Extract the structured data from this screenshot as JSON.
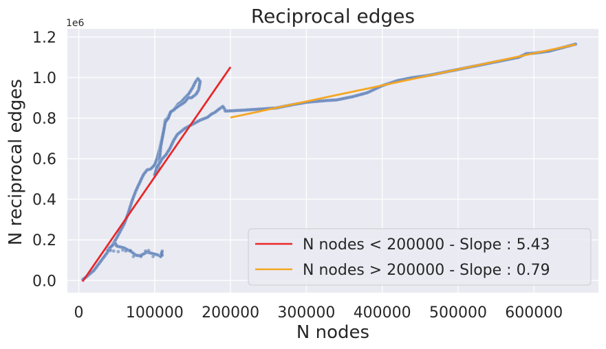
{
  "chart_data": {
    "type": "scatter",
    "title": "Reciprocal edges",
    "xlabel": "N nodes",
    "ylabel": "N reciprocal edges",
    "y_offset_label": "1e6",
    "xlim": [
      -15000,
      685000
    ],
    "ylim": [
      -60000,
      1240000
    ],
    "x_ticks": [
      0,
      100000,
      200000,
      300000,
      400000,
      500000,
      600000
    ],
    "x_tick_labels": [
      "0",
      "100000",
      "200000",
      "300000",
      "400000",
      "500000",
      "600000"
    ],
    "y_ticks": [
      0,
      200000,
      400000,
      600000,
      800000,
      1000000,
      1200000
    ],
    "y_tick_labels": [
      "0.0",
      "0.2",
      "0.4",
      "0.6",
      "0.8",
      "1.0",
      "1.2"
    ],
    "grid": true,
    "legend_position": "bottom-right",
    "colors": {
      "background": "#eaeaf2",
      "grid": "#ffffff",
      "points": "#4c72b0",
      "fit_low": "#e8272a",
      "fit_high": "#f5a623"
    },
    "scatter_paths": [
      [
        [
          5000,
          5000
        ],
        [
          10000,
          18000
        ],
        [
          20000,
          50000
        ],
        [
          30000,
          100000
        ],
        [
          40000,
          150000
        ],
        [
          50000,
          210000
        ],
        [
          60000,
          280000
        ],
        [
          65000,
          330000
        ],
        [
          70000,
          390000
        ],
        [
          75000,
          440000
        ],
        [
          80000,
          480000
        ],
        [
          85000,
          520000
        ],
        [
          90000,
          545000
        ],
        [
          95000,
          550000
        ],
        [
          100000,
          570000
        ],
        [
          103000,
          600000
        ],
        [
          106000,
          640000
        ],
        [
          109000,
          690000
        ],
        [
          112000,
          740000
        ],
        [
          114000,
          790000
        ],
        [
          117000,
          800000
        ],
        [
          121000,
          830000
        ],
        [
          126000,
          845000
        ],
        [
          131000,
          870000
        ],
        [
          135000,
          880000
        ],
        [
          140000,
          900000
        ],
        [
          145000,
          920000
        ],
        [
          150000,
          950000
        ],
        [
          154000,
          980000
        ],
        [
          157000,
          995000
        ],
        [
          160000,
          980000
        ],
        [
          158000,
          940000
        ],
        [
          155000,
          920000
        ],
        [
          152000,
          910000
        ],
        [
          148000,
          900000
        ],
        [
          144000,
          900000
        ],
        [
          140000,
          880000
        ],
        [
          136000,
          870000
        ],
        [
          132000,
          860000
        ],
        [
          128000,
          850000
        ],
        [
          125000,
          840000
        ],
        [
          121000,
          830000
        ],
        [
          118000,
          800000
        ],
        [
          114000,
          780000
        ],
        [
          112000,
          740000
        ],
        [
          110000,
          700000
        ],
        [
          108000,
          660000
        ],
        [
          107000,
          620000
        ],
        [
          106000,
          580000
        ],
        [
          104000,
          540000
        ],
        [
          100000,
          520000
        ],
        [
          103000,
          560000
        ],
        [
          107000,
          580000
        ],
        [
          110000,
          600000
        ],
        [
          115000,
          620000
        ],
        [
          120000,
          650000
        ],
        [
          125000,
          690000
        ],
        [
          130000,
          720000
        ],
        [
          140000,
          750000
        ],
        [
          150000,
          770000
        ],
        [
          160000,
          790000
        ],
        [
          170000,
          805000
        ],
        [
          175000,
          820000
        ],
        [
          180000,
          830000
        ],
        [
          185000,
          845000
        ],
        [
          190000,
          858000
        ],
        [
          193000,
          840000
        ]
      ],
      [
        [
          193000,
          835000
        ],
        [
          200000,
          836000
        ],
        [
          210000,
          838000
        ],
        [
          220000,
          840000
        ],
        [
          240000,
          845000
        ],
        [
          260000,
          850000
        ],
        [
          280000,
          865000
        ],
        [
          300000,
          878000
        ],
        [
          320000,
          885000
        ],
        [
          340000,
          890000
        ],
        [
          360000,
          905000
        ],
        [
          380000,
          925000
        ],
        [
          400000,
          960000
        ],
        [
          420000,
          985000
        ],
        [
          440000,
          1000000
        ],
        [
          460000,
          1010000
        ],
        [
          480000,
          1025000
        ],
        [
          500000,
          1040000
        ],
        [
          520000,
          1055000
        ],
        [
          540000,
          1070000
        ],
        [
          560000,
          1085000
        ],
        [
          580000,
          1100000
        ],
        [
          590000,
          1118000
        ],
        [
          600000,
          1120000
        ],
        [
          620000,
          1130000
        ],
        [
          640000,
          1150000
        ],
        [
          655000,
          1165000
        ]
      ],
      [
        [
          40000,
          160000
        ],
        [
          45000,
          175000
        ],
        [
          48000,
          185000
        ],
        [
          50000,
          170000
        ],
        [
          55000,
          165000
        ],
        [
          60000,
          160000
        ],
        [
          65000,
          150000
        ],
        [
          70000,
          140000
        ],
        [
          75000,
          125000
        ],
        [
          80000,
          122000
        ],
        [
          85000,
          130000
        ],
        [
          90000,
          140000
        ],
        [
          95000,
          135000
        ],
        [
          100000,
          130000
        ],
        [
          105000,
          125000
        ],
        [
          108000,
          120000
        ],
        [
          110000,
          145000
        ],
        [
          109000,
          130000
        ]
      ]
    ],
    "scatter_points": [
      [
        38000,
        150000
      ],
      [
        42000,
        148000
      ],
      [
        46000,
        145000
      ],
      [
        52000,
        142000
      ],
      [
        58000,
        150000
      ],
      [
        62000,
        145000
      ],
      [
        68000,
        148000
      ],
      [
        72000,
        118000
      ],
      [
        82000,
        118000
      ],
      [
        88000,
        145000
      ],
      [
        92000,
        148000
      ],
      [
        98000,
        118000
      ],
      [
        108000,
        118000
      ],
      [
        110000,
        125000
      ]
    ],
    "series": [
      {
        "name": "N nodes < 200000 - Slope : 5.43",
        "x": [
          5000,
          200000
        ],
        "y": [
          -5000,
          1052000
        ]
      },
      {
        "name": "N nodes > 200000 - Slope : 0.79",
        "x": [
          200000,
          655000
        ],
        "y": [
          803000,
          1163000
        ]
      }
    ]
  }
}
